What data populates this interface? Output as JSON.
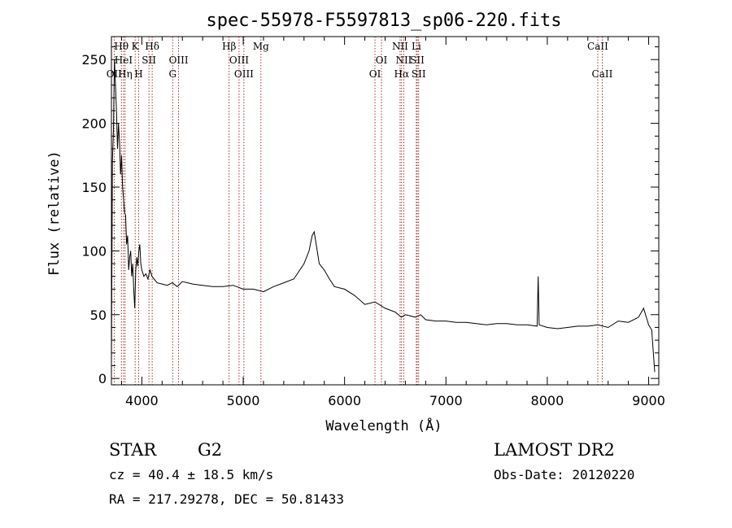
{
  "chart_data": {
    "type": "line",
    "title": "spec-55978-F5597813_sp06-220.fits",
    "xlabel": "Wavelength (Å)",
    "ylabel": "Flux (relative)",
    "xlim": [
      3700,
      9100
    ],
    "ylim": [
      -5,
      268
    ],
    "xticks": [
      4000,
      5000,
      6000,
      7000,
      8000,
      9000
    ],
    "yticks": [
      0,
      50,
      100,
      150,
      200,
      250
    ],
    "grid": false,
    "legend": "none",
    "line_color": "#000000",
    "marker_color": "#8b0000",
    "spectrum": {
      "x": [
        3700,
        3710,
        3720,
        3730,
        3740,
        3750,
        3760,
        3770,
        3780,
        3790,
        3800,
        3810,
        3820,
        3830,
        3840,
        3850,
        3860,
        3870,
        3880,
        3890,
        3900,
        3910,
        3920,
        3930,
        3940,
        3950,
        3960,
        3970,
        3980,
        3990,
        4000,
        4020,
        4040,
        4060,
        4080,
        4100,
        4150,
        4200,
        4250,
        4300,
        4350,
        4400,
        4500,
        4600,
        4700,
        4800,
        4900,
        5000,
        5100,
        5200,
        5300,
        5400,
        5500,
        5600,
        5650,
        5680,
        5700,
        5720,
        5750,
        5800,
        5850,
        5900,
        6000,
        6100,
        6200,
        6300,
        6400,
        6500,
        6560,
        6600,
        6700,
        6750,
        6800,
        6900,
        7000,
        7100,
        7200,
        7300,
        7400,
        7500,
        7600,
        7700,
        7800,
        7900,
        7910,
        7920,
        8000,
        8100,
        8200,
        8300,
        8400,
        8500,
        8600,
        8700,
        8800,
        8900,
        8950,
        9000,
        9030,
        9060
      ],
      "y": [
        10,
        170,
        195,
        250,
        230,
        210,
        180,
        200,
        185,
        160,
        175,
        150,
        140,
        130,
        128,
        105,
        112,
        85,
        95,
        100,
        80,
        90,
        70,
        55,
        85,
        95,
        88,
        100,
        105,
        90,
        85,
        80,
        82,
        78,
        85,
        80,
        75,
        74,
        73,
        75,
        72,
        76,
        74,
        73,
        72,
        72,
        73,
        70,
        70,
        68,
        72,
        75,
        78,
        90,
        100,
        112,
        115,
        105,
        90,
        85,
        78,
        72,
        70,
        65,
        58,
        60,
        55,
        52,
        48,
        50,
        48,
        50,
        46,
        45,
        45,
        44,
        44,
        43,
        42,
        43,
        43,
        42,
        42,
        41,
        80,
        42,
        40,
        39,
        40,
        41,
        41,
        42,
        40,
        45,
        44,
        48,
        55,
        42,
        38,
        5
      ]
    },
    "lines": [
      {
        "label": "Hθ",
        "x": 3798,
        "row": 1
      },
      {
        "label": "OII",
        "x": 3727,
        "row": 3
      },
      {
        "label": "HeI",
        "x": 3820,
        "row": 2
      },
      {
        "label": "Hη",
        "x": 3835,
        "row": 3
      },
      {
        "label": "K",
        "x": 3934,
        "row": 1
      },
      {
        "label": "SII",
        "x": 4070,
        "row": 2
      },
      {
        "label": "H",
        "x": 3969,
        "row": 3
      },
      {
        "label": "Hδ",
        "x": 4102,
        "row": 1
      },
      {
        "label": "OIII",
        "x": 4363,
        "row": 2
      },
      {
        "label": "G",
        "x": 4304,
        "row": 3
      },
      {
        "label": "Hβ",
        "x": 4861,
        "row": 1
      },
      {
        "label": "OIII",
        "x": 4959,
        "row": 2
      },
      {
        "label": "OIII",
        "x": 5007,
        "row": 3
      },
      {
        "label": "Mg",
        "x": 5175,
        "row": 1
      },
      {
        "label": "OI",
        "x": 6364,
        "row": 2
      },
      {
        "label": "OI",
        "x": 6300,
        "row": 3
      },
      {
        "label": "NII",
        "x": 6548,
        "row": 1
      },
      {
        "label": "NII",
        "x": 6584,
        "row": 2
      },
      {
        "label": "Hα",
        "x": 6563,
        "row": 3
      },
      {
        "label": "Li",
        "x": 6708,
        "row": 1
      },
      {
        "label": "SII",
        "x": 6717,
        "row": 2
      },
      {
        "label": "SII",
        "x": 6731,
        "row": 3
      },
      {
        "label": "CaII",
        "x": 8498,
        "row": 1
      },
      {
        "label": "CaII",
        "x": 8542,
        "row": 3
      }
    ]
  },
  "info": {
    "class_label": "STAR",
    "subclass": "G2",
    "survey": "LAMOST DR2",
    "cz": "cz = 40.4 ± 18.5 km/s",
    "obs_date": "Obs-Date: 20120220",
    "coords": "RA = 217.29278, DEC =  50.81433"
  }
}
